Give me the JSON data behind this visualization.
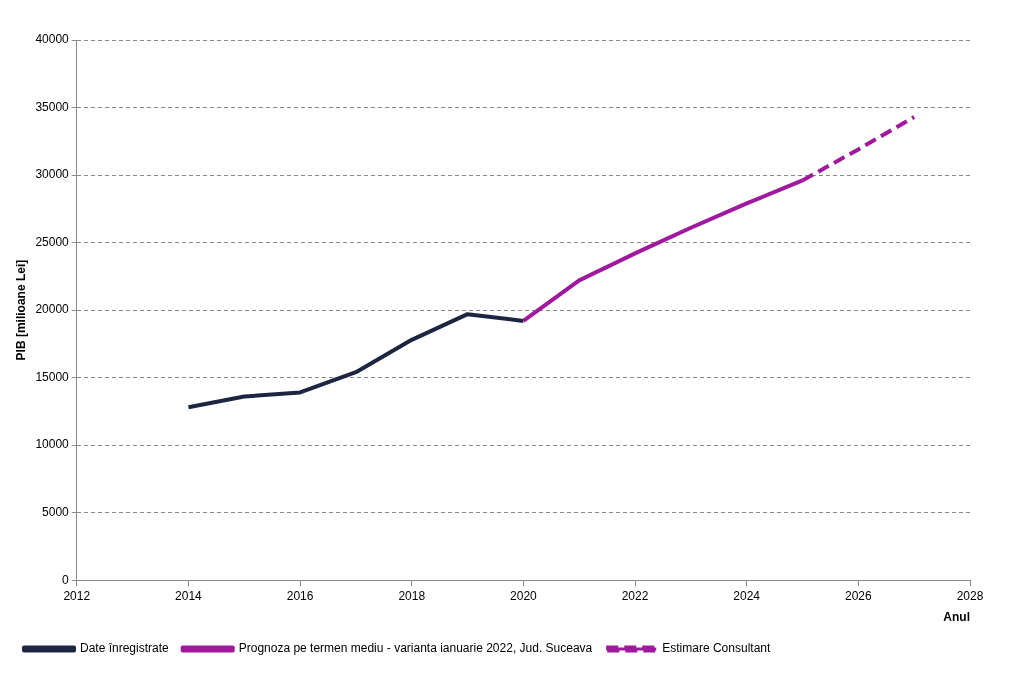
{
  "chart_data": {
    "type": "line",
    "xlabel": "Anul",
    "ylabel": "PIB [milioane Lei]",
    "xlim": [
      2012,
      2028
    ],
    "xticks": [
      2012,
      2014,
      2016,
      2018,
      2020,
      2022,
      2024,
      2026,
      2028
    ],
    "ylim": [
      0,
      40000
    ],
    "yticks": [
      0,
      5000,
      10000,
      15000,
      20000,
      25000,
      30000,
      35000,
      40000
    ],
    "grid": "y",
    "legend": "bottom",
    "marker": "none",
    "series": [
      {
        "name": "Date înregistrate",
        "color": "#1c2541",
        "x": [
          2014,
          2015,
          2016,
          2017,
          2018,
          2019,
          2020
        ],
        "values": [
          12800,
          13600,
          13900,
          15400,
          17800,
          19700,
          19200
        ]
      },
      {
        "name": "Prognoza pe termen mediu - varianta ianuarie 2022, Jud. Suceava",
        "color": "#a0189e",
        "x": [
          2020,
          2021,
          2022,
          2023,
          2024,
          2025
        ],
        "values": [
          19200,
          22200,
          24200,
          26100,
          27900,
          29600
        ]
      },
      {
        "name": "Estimare Consultant",
        "color": "#a0189e",
        "line_style": "dashed",
        "x": [
          2025,
          2026,
          2027
        ],
        "values": [
          29600,
          31900,
          34300
        ]
      }
    ]
  }
}
